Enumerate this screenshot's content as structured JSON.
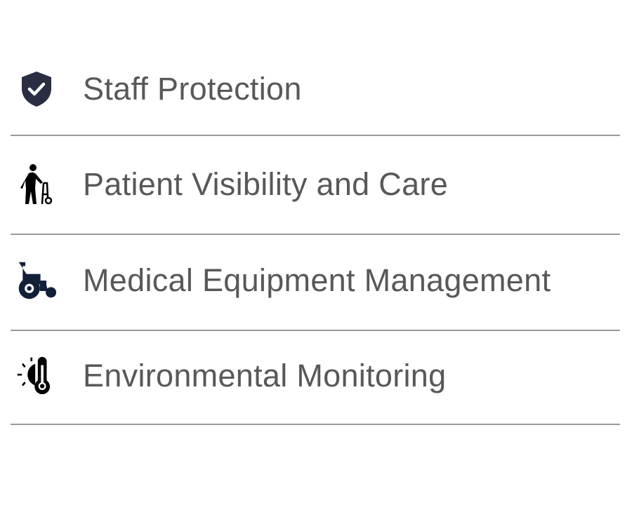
{
  "items": [
    {
      "label": "Staff Protection",
      "icon": "shield-check-icon"
    },
    {
      "label": "Patient Visibility and Care",
      "icon": "elderly-walker-icon"
    },
    {
      "label": "Medical Equipment Management",
      "icon": "wheelchair-icon"
    },
    {
      "label": "Environmental Monitoring",
      "icon": "sun-thermometer-icon"
    }
  ],
  "colors": {
    "text": "#58585a",
    "icon_navy": "#1f2940",
    "icon_black": "#000000",
    "divider": "#9a9a9a"
  }
}
